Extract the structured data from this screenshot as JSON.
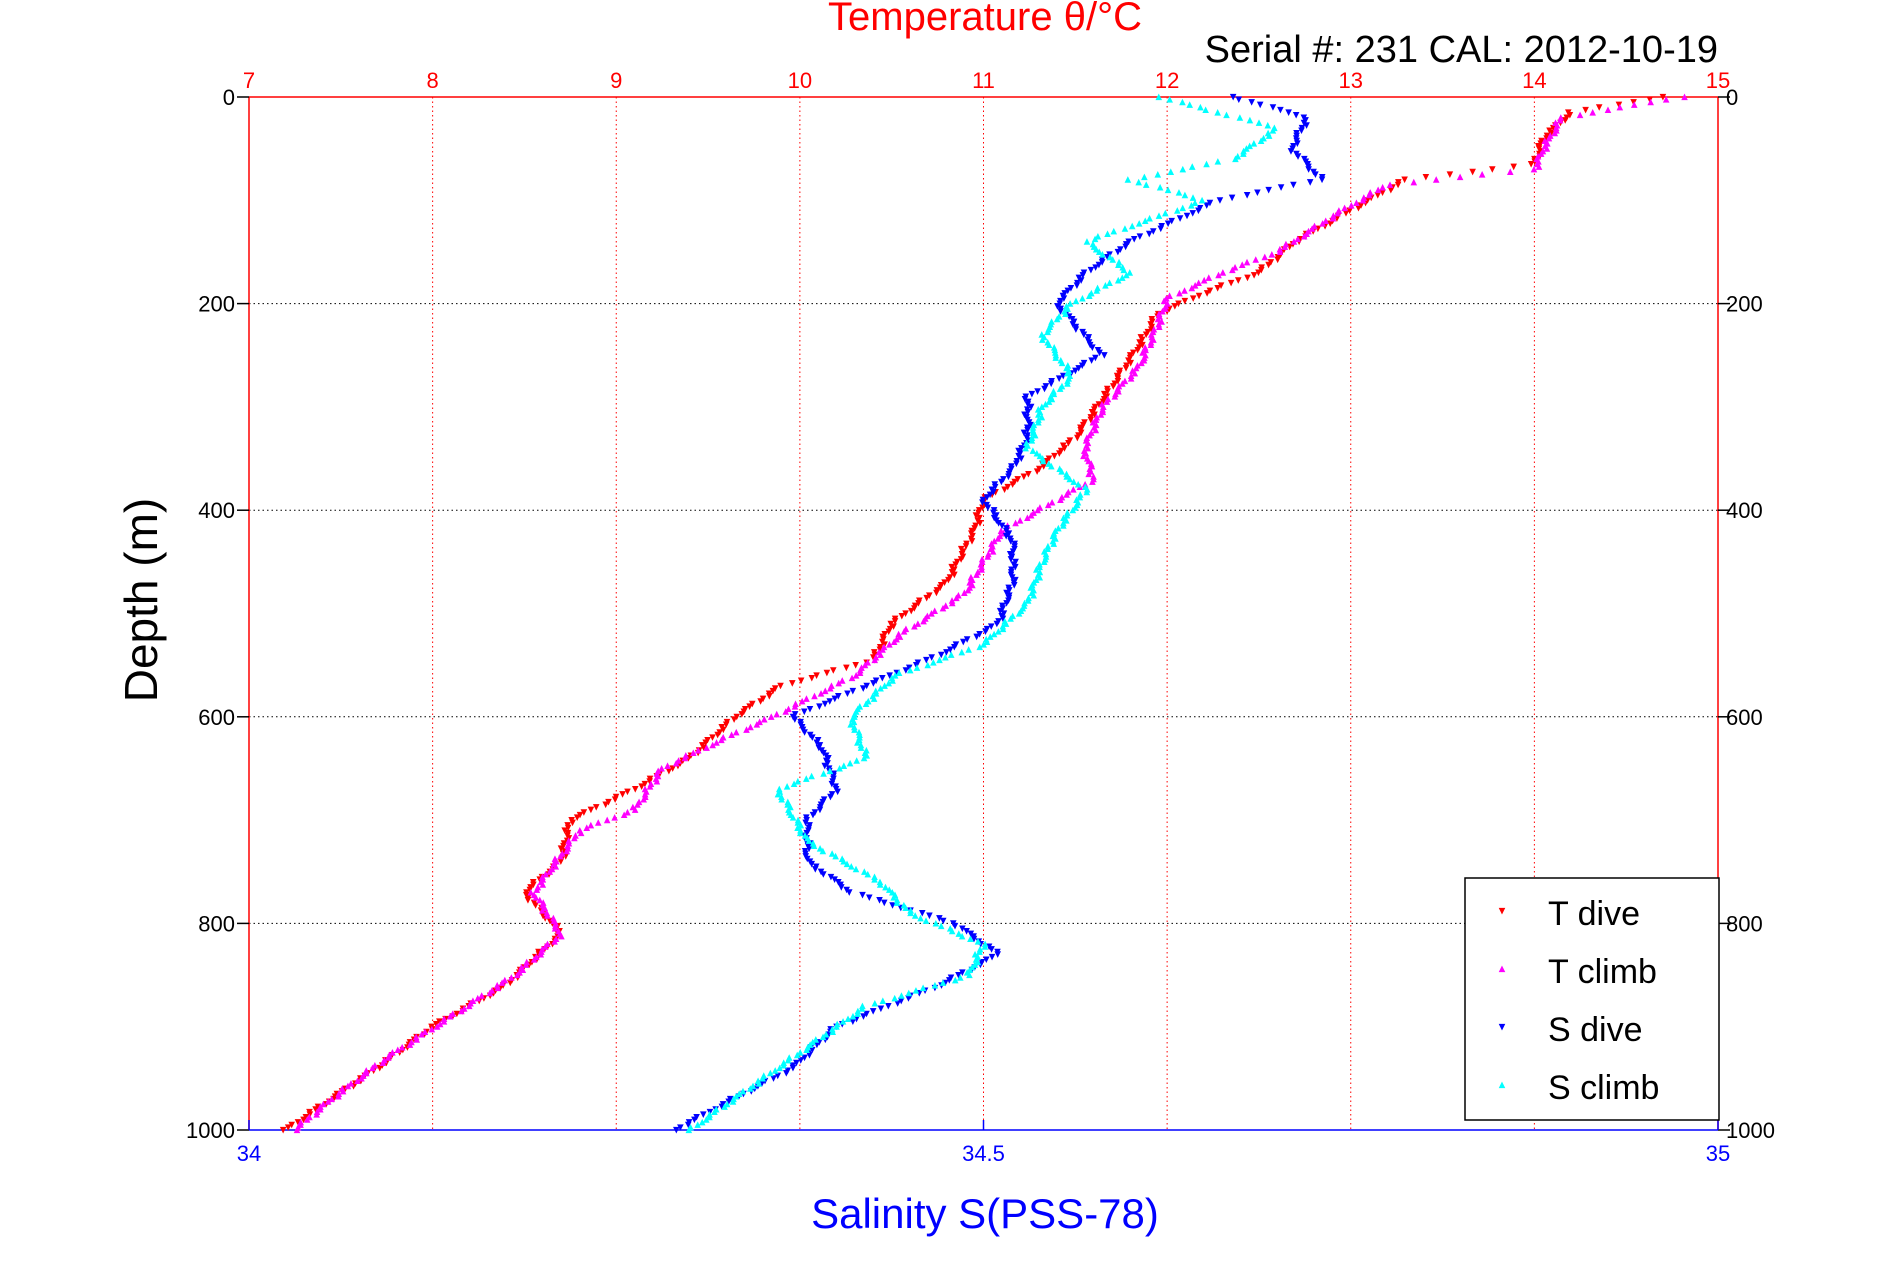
{
  "chart_data": {
    "type": "scatter",
    "title": "Temperature θ/°C",
    "subtitle": "Serial #: 231  CAL: 2012-10-19",
    "ylabel": "Depth (m)",
    "xlabel": "Salinity S(PSS-78)",
    "ylim": [
      0,
      1000
    ],
    "y_reversed": true,
    "y_ticks": [
      0,
      200,
      400,
      600,
      800,
      1000
    ],
    "x_top": {
      "label": "Temperature θ/°C",
      "lim": [
        7,
        15
      ],
      "ticks": [
        7,
        8,
        9,
        10,
        11,
        12,
        13,
        14,
        15
      ],
      "color": "#ff0000",
      "grid": true
    },
    "x_bottom": {
      "label": "Salinity S(PSS-78)",
      "lim": [
        34,
        35
      ],
      "ticks": [
        34,
        34.5,
        35
      ],
      "color": "#0000ff"
    },
    "grid": {
      "y": true,
      "x_top": true
    },
    "legend_position": "bottom-right",
    "series": [
      {
        "name": "T dive",
        "axis": "temperature",
        "marker": "triangle-down",
        "color": "#ff0000",
        "points": [
          [
            14.7,
            0
          ],
          [
            14.2,
            15
          ],
          [
            14.05,
            40
          ],
          [
            14.0,
            65
          ],
          [
            13.3,
            80
          ],
          [
            13.0,
            110
          ],
          [
            12.7,
            140
          ],
          [
            12.5,
            170
          ],
          [
            12.2,
            190
          ],
          [
            11.95,
            210
          ],
          [
            11.85,
            240
          ],
          [
            11.7,
            280
          ],
          [
            11.5,
            330
          ],
          [
            11.3,
            360
          ],
          [
            11.0,
            390
          ],
          [
            10.95,
            420
          ],
          [
            10.8,
            470
          ],
          [
            10.5,
            510
          ],
          [
            10.4,
            545
          ],
          [
            9.9,
            570
          ],
          [
            9.65,
            600
          ],
          [
            9.4,
            640
          ],
          [
            9.1,
            670
          ],
          [
            8.75,
            700
          ],
          [
            8.7,
            740
          ],
          [
            8.5,
            770
          ],
          [
            8.7,
            810
          ],
          [
            8.4,
            860
          ],
          [
            8.0,
            900
          ],
          [
            7.7,
            940
          ],
          [
            7.45,
            970
          ],
          [
            7.2,
            1000
          ]
        ]
      },
      {
        "name": "T climb",
        "axis": "temperature",
        "marker": "triangle-up",
        "color": "#ff00ff",
        "points": [
          [
            14.8,
            0
          ],
          [
            14.15,
            20
          ],
          [
            14.05,
            50
          ],
          [
            14.0,
            70
          ],
          [
            13.2,
            85
          ],
          [
            12.95,
            110
          ],
          [
            12.6,
            150
          ],
          [
            12.3,
            170
          ],
          [
            12.0,
            195
          ],
          [
            11.95,
            220
          ],
          [
            11.85,
            260
          ],
          [
            11.65,
            300
          ],
          [
            11.55,
            340
          ],
          [
            11.6,
            370
          ],
          [
            11.1,
            420
          ],
          [
            10.9,
            480
          ],
          [
            10.55,
            520
          ],
          [
            10.3,
            560
          ],
          [
            9.85,
            600
          ],
          [
            9.6,
            620
          ],
          [
            9.25,
            650
          ],
          [
            9.1,
            690
          ],
          [
            8.8,
            710
          ],
          [
            8.55,
            770
          ],
          [
            8.7,
            810
          ],
          [
            8.45,
            850
          ],
          [
            8.1,
            890
          ],
          [
            7.75,
            930
          ],
          [
            7.45,
            970
          ],
          [
            7.25,
            1000
          ]
        ]
      },
      {
        "name": "S dive",
        "axis": "salinity",
        "marker": "triangle-down",
        "color": "#0000ff",
        "points": [
          [
            34.67,
            0
          ],
          [
            34.72,
            20
          ],
          [
            34.71,
            50
          ],
          [
            34.73,
            80
          ],
          [
            34.66,
            100
          ],
          [
            34.6,
            140
          ],
          [
            34.57,
            170
          ],
          [
            34.55,
            200
          ],
          [
            34.58,
            250
          ],
          [
            34.53,
            290
          ],
          [
            34.53,
            330
          ],
          [
            34.52,
            360
          ],
          [
            34.5,
            390
          ],
          [
            34.52,
            430
          ],
          [
            34.52,
            470
          ],
          [
            34.51,
            510
          ],
          [
            34.47,
            540
          ],
          [
            34.42,
            570
          ],
          [
            34.37,
            600
          ],
          [
            34.39,
            630
          ],
          [
            34.4,
            670
          ],
          [
            34.38,
            700
          ],
          [
            34.38,
            740
          ],
          [
            34.41,
            770
          ],
          [
            34.48,
            800
          ],
          [
            34.51,
            830
          ],
          [
            34.47,
            860
          ],
          [
            34.4,
            900
          ],
          [
            34.37,
            940
          ],
          [
            34.33,
            970
          ],
          [
            34.29,
            1000
          ]
        ]
      },
      {
        "name": "S climb",
        "axis": "salinity",
        "marker": "triangle-up",
        "color": "#00ffff",
        "points": [
          [
            34.62,
            0
          ],
          [
            34.7,
            30
          ],
          [
            34.67,
            60
          ],
          [
            34.6,
            80
          ],
          [
            34.65,
            100
          ],
          [
            34.57,
            140
          ],
          [
            34.6,
            170
          ],
          [
            34.56,
            200
          ],
          [
            34.54,
            230
          ],
          [
            34.56,
            270
          ],
          [
            34.54,
            300
          ],
          [
            34.53,
            340
          ],
          [
            34.57,
            380
          ],
          [
            34.55,
            420
          ],
          [
            34.54,
            450
          ],
          [
            34.53,
            490
          ],
          [
            34.5,
            530
          ],
          [
            34.44,
            560
          ],
          [
            34.41,
            600
          ],
          [
            34.42,
            640
          ],
          [
            34.36,
            670
          ],
          [
            34.38,
            720
          ],
          [
            34.43,
            760
          ],
          [
            34.45,
            790
          ],
          [
            34.5,
            820
          ],
          [
            34.49,
            850
          ],
          [
            34.42,
            880
          ],
          [
            34.38,
            920
          ],
          [
            34.34,
            960
          ],
          [
            34.3,
            1000
          ]
        ]
      }
    ]
  }
}
